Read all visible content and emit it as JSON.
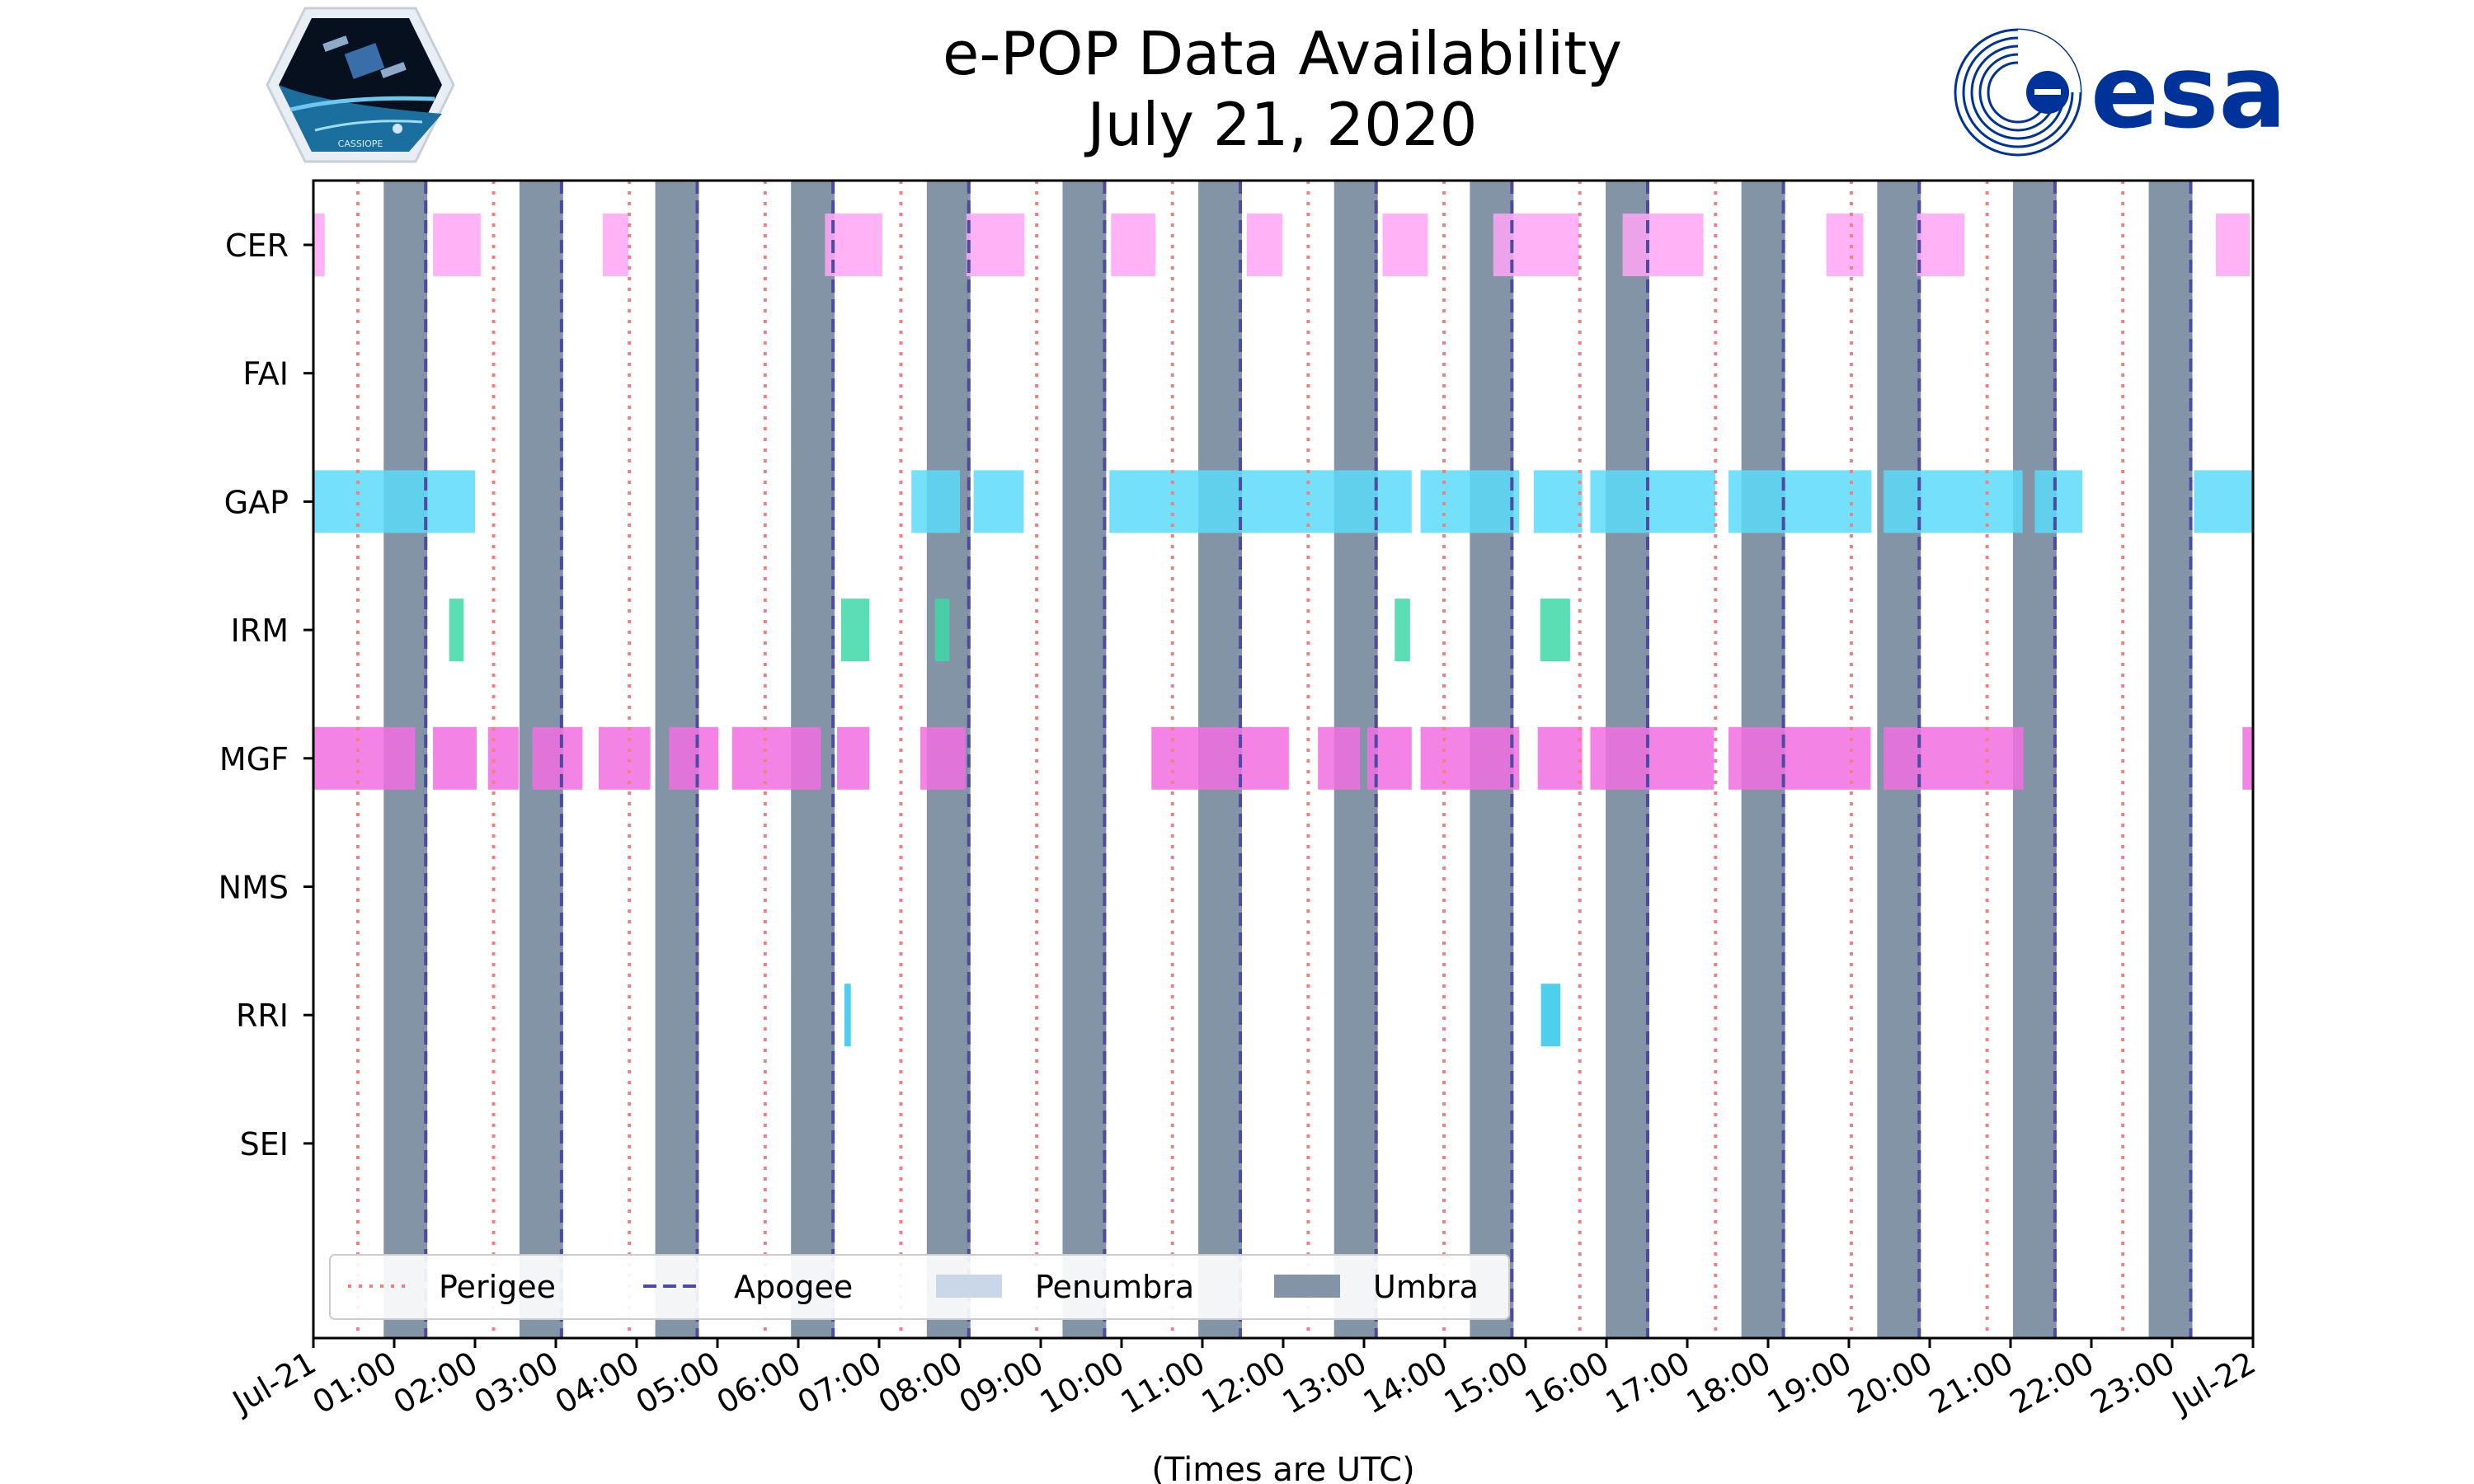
{
  "colors": {
    "umbra": "#8394a6",
    "penumbra": "#c9d7e8",
    "perigee": "#f27f7f",
    "apogee": "#4d4aa2",
    "CER": "#ffa6f5",
    "GAP": "#5cdbf9",
    "IRM": "#3fd8a8",
    "MGF": "#f16ee0",
    "RRI": "#2ec7ea",
    "esa_blue": "#003399"
  },
  "logos": {
    "cassiope_text": "CASSIOPE",
    "esa_text": "esa"
  },
  "chart_data": {
    "type": "timeline",
    "title": "e-POP Data Availability",
    "subtitle": "July 21, 2020",
    "xlabel": "(Times are UTC)",
    "xlim_hours": [
      0,
      24
    ],
    "xtick_labels": [
      "Jul-21",
      "01:00",
      "02:00",
      "03:00",
      "04:00",
      "05:00",
      "06:00",
      "07:00",
      "08:00",
      "09:00",
      "10:00",
      "11:00",
      "12:00",
      "13:00",
      "14:00",
      "15:00",
      "16:00",
      "17:00",
      "18:00",
      "19:00",
      "20:00",
      "21:00",
      "22:00",
      "23:00",
      "Jul-22"
    ],
    "instruments": [
      "CER",
      "FAI",
      "GAP",
      "IRM",
      "MGF",
      "NMS",
      "RRI",
      "SEI"
    ],
    "perigee_hours": [
      0.55,
      2.23,
      3.91,
      5.59,
      7.27,
      8.95,
      10.63,
      12.31,
      13.99,
      15.67,
      17.35,
      19.03,
      20.71,
      22.39
    ],
    "apogee_hours": [
      1.39,
      3.07,
      4.75,
      6.43,
      8.11,
      9.79,
      11.47,
      13.15,
      14.83,
      16.51,
      18.19,
      19.87,
      21.55,
      23.23
    ],
    "umbra_intervals": [
      [
        0.87,
        1.41
      ],
      [
        2.55,
        3.09
      ],
      [
        4.23,
        4.77
      ],
      [
        5.91,
        6.45
      ],
      [
        7.59,
        8.13
      ],
      [
        9.27,
        9.81
      ],
      [
        10.95,
        11.49
      ],
      [
        12.63,
        13.17
      ],
      [
        14.31,
        14.85
      ],
      [
        15.99,
        16.53
      ],
      [
        17.67,
        18.21
      ],
      [
        19.35,
        19.89
      ],
      [
        21.03,
        21.57
      ],
      [
        22.71,
        23.25
      ]
    ],
    "availability": {
      "CER": [
        [
          0.0,
          0.14
        ],
        [
          1.48,
          2.07
        ],
        [
          3.58,
          3.9
        ],
        [
          6.33,
          7.04
        ],
        [
          8.08,
          8.8
        ],
        [
          9.87,
          10.42
        ],
        [
          11.55,
          11.99
        ],
        [
          13.23,
          13.79
        ],
        [
          14.6,
          15.66
        ],
        [
          16.2,
          17.2
        ],
        [
          18.72,
          19.18
        ],
        [
          19.84,
          20.43
        ],
        [
          23.54,
          23.96
        ]
      ],
      "FAI": [],
      "GAP": [
        [
          0.0,
          2.0
        ],
        [
          7.4,
          8.0
        ],
        [
          8.17,
          8.79
        ],
        [
          9.85,
          13.59
        ],
        [
          13.7,
          14.92
        ],
        [
          15.1,
          15.7
        ],
        [
          15.8,
          17.35
        ],
        [
          17.51,
          19.28
        ],
        [
          19.43,
          21.15
        ],
        [
          21.3,
          21.89
        ],
        [
          23.27,
          24.0
        ]
      ],
      "IRM": [
        [
          1.68,
          1.86
        ],
        [
          6.53,
          6.88
        ],
        [
          7.69,
          7.87
        ],
        [
          13.38,
          13.57
        ],
        [
          15.18,
          15.55
        ]
      ],
      "MGF": [
        [
          0.0,
          1.26
        ],
        [
          1.48,
          2.02
        ],
        [
          2.16,
          2.54
        ],
        [
          2.71,
          3.33
        ],
        [
          3.53,
          4.17
        ],
        [
          4.4,
          5.01
        ],
        [
          5.18,
          6.28
        ],
        [
          6.48,
          6.88
        ],
        [
          7.51,
          8.07
        ],
        [
          10.37,
          12.07
        ],
        [
          12.43,
          12.95
        ],
        [
          13.04,
          13.59
        ],
        [
          13.7,
          14.92
        ],
        [
          15.15,
          15.7
        ],
        [
          15.8,
          17.33
        ],
        [
          17.51,
          19.27
        ],
        [
          19.43,
          21.16
        ],
        [
          23.87,
          24.0
        ]
      ],
      "NMS": [],
      "RRI": [
        [
          6.57,
          6.65
        ],
        [
          15.19,
          15.43
        ]
      ],
      "SEI": []
    },
    "legend": {
      "position": "bottom-left",
      "entries": [
        "Perigee",
        "Apogee",
        "Penumbra",
        "Umbra"
      ]
    }
  }
}
